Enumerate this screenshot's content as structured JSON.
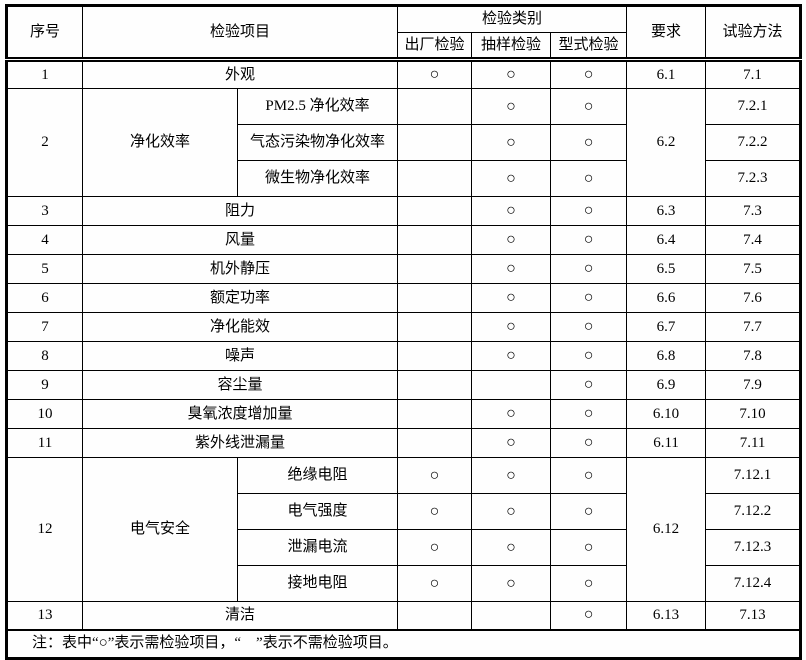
{
  "colors": {
    "background": "#ffffff",
    "border": "#000000",
    "text": "#000000"
  },
  "table": {
    "header": {
      "serial": "序号",
      "item": "检验项目",
      "category": "检验类别",
      "subcolumns": [
        "出厂检验",
        "抽样检验",
        "型式检验"
      ],
      "requirement": "要求",
      "method": "试验方法"
    },
    "mark_symbol": "○",
    "rows": [
      {
        "no": "1",
        "item": "外观",
        "marks": [
          "○",
          "○",
          "○"
        ],
        "req": "6.1",
        "method": "7.1"
      },
      {
        "no": "2",
        "item": "净化效率",
        "req": "6.2",
        "subs": [
          {
            "name": "PM2.5 净化效率",
            "marks": [
              "",
              "○",
              "○"
            ],
            "method": "7.2.1"
          },
          {
            "name": "气态污染物净化效率",
            "marks": [
              "",
              "○",
              "○"
            ],
            "method": "7.2.2"
          },
          {
            "name": "微生物净化效率",
            "marks": [
              "",
              "○",
              "○"
            ],
            "method": "7.2.3"
          }
        ]
      },
      {
        "no": "3",
        "item": "阻力",
        "marks": [
          "",
          "○",
          "○"
        ],
        "req": "6.3",
        "method": "7.3"
      },
      {
        "no": "4",
        "item": "风量",
        "marks": [
          "",
          "○",
          "○"
        ],
        "req": "6.4",
        "method": "7.4"
      },
      {
        "no": "5",
        "item": "机外静压",
        "marks": [
          "",
          "○",
          "○"
        ],
        "req": "6.5",
        "method": "7.5"
      },
      {
        "no": "6",
        "item": "额定功率",
        "marks": [
          "",
          "○",
          "○"
        ],
        "req": "6.6",
        "method": "7.6"
      },
      {
        "no": "7",
        "item": "净化能效",
        "marks": [
          "",
          "○",
          "○"
        ],
        "req": "6.7",
        "method": "7.7"
      },
      {
        "no": "8",
        "item": "噪声",
        "marks": [
          "",
          "○",
          "○"
        ],
        "req": "6.8",
        "method": "7.8"
      },
      {
        "no": "9",
        "item": "容尘量",
        "marks": [
          "",
          "",
          "○"
        ],
        "req": "6.9",
        "method": "7.9"
      },
      {
        "no": "10",
        "item": "臭氧浓度增加量",
        "marks": [
          "",
          "○",
          "○"
        ],
        "req": "6.10",
        "method": "7.10"
      },
      {
        "no": "11",
        "item": "紫外线泄漏量",
        "marks": [
          "",
          "○",
          "○"
        ],
        "req": "6.11",
        "method": "7.11"
      },
      {
        "no": "12",
        "item": "电气安全",
        "req": "6.12",
        "subs": [
          {
            "name": "绝缘电阻",
            "marks": [
              "○",
              "○",
              "○"
            ],
            "method": "7.12.1"
          },
          {
            "name": "电气强度",
            "marks": [
              "○",
              "○",
              "○"
            ],
            "method": "7.12.2"
          },
          {
            "name": "泄漏电流",
            "marks": [
              "○",
              "○",
              "○"
            ],
            "method": "7.12.3"
          },
          {
            "name": "接地电阻",
            "marks": [
              "○",
              "○",
              "○"
            ],
            "method": "7.12.4"
          }
        ]
      },
      {
        "no": "13",
        "item": "清洁",
        "marks": [
          "",
          "",
          "○"
        ],
        "req": "6.13",
        "method": "7.13"
      }
    ],
    "note": "注：表中“○”表示需检验项目，“　”表示不需检验项目。"
  }
}
